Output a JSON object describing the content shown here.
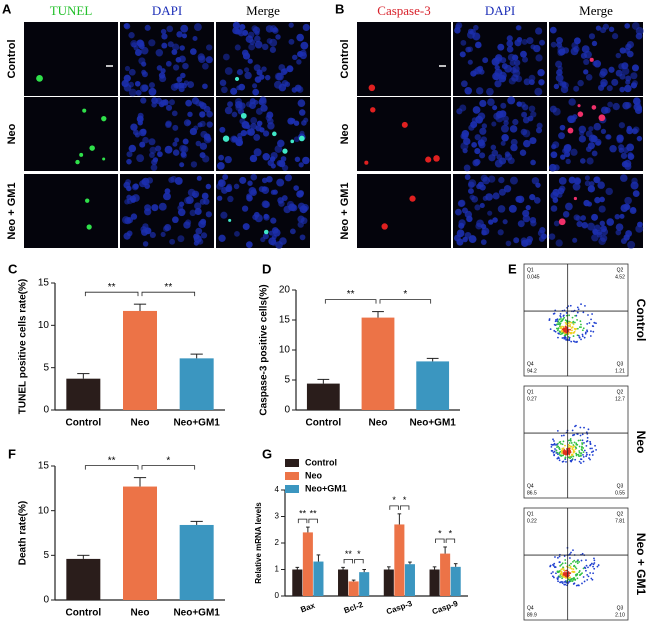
{
  "panel_a": {
    "label": "A",
    "columns": [
      "TUNEL",
      "DAPI",
      "Merge"
    ],
    "rows": [
      "Control",
      "Neo",
      "Neo + GM1"
    ]
  },
  "panel_b": {
    "label": "B",
    "columns": [
      "Caspase-3",
      "DAPI",
      "Merge"
    ],
    "rows": [
      "Control",
      "Neo",
      "Neo + GM1"
    ]
  },
  "panel_e": {
    "label": "E",
    "rows": [
      "Control",
      "Neo",
      "Neo + GM1"
    ],
    "plots": [
      {
        "quadrants": [
          {
            "name": "Q1",
            "value": "0.045"
          },
          {
            "name": "Q2",
            "value": "4.52"
          },
          {
            "name": "Q4",
            "value": "94.2"
          },
          {
            "name": "Q3",
            "value": "1.21"
          }
        ]
      },
      {
        "quadrants": [
          {
            "name": "Q1",
            "value": "0.27"
          },
          {
            "name": "Q2",
            "value": "12.7"
          },
          {
            "name": "Q4",
            "value": "86.5"
          },
          {
            "name": "Q3",
            "value": "0.55"
          }
        ]
      },
      {
        "quadrants": [
          {
            "name": "Q1",
            "value": "0.22"
          },
          {
            "name": "Q2",
            "value": "7.81"
          },
          {
            "name": "Q4",
            "value": "89.9"
          },
          {
            "name": "Q3",
            "value": "2.10"
          }
        ]
      }
    ]
  },
  "chart_data": [
    {
      "type": "bar",
      "panel_label": "C",
      "y_label": "TUNEL positive cells rate(%)",
      "categories": [
        "Control",
        "Neo",
        "Neo+GM1"
      ],
      "values": [
        3.7,
        11.7,
        6.1
      ],
      "errors": [
        0.6,
        0.8,
        0.5
      ],
      "colors": [
        "#2a1d1b",
        "#ec7347",
        "#3b96c0"
      ],
      "ylim": [
        0,
        15
      ],
      "yticks": [
        0,
        5,
        10,
        15
      ],
      "annotations": [
        "**",
        "**"
      ]
    },
    {
      "type": "bar",
      "panel_label": "D",
      "y_label": "Caspase-3 positive cells(%)",
      "categories": [
        "Control",
        "Neo",
        "Neo+GM1"
      ],
      "values": [
        4.4,
        15.4,
        8.1
      ],
      "errors": [
        0.7,
        1.0,
        0.5
      ],
      "colors": [
        "#2a1d1b",
        "#ec7347",
        "#3b96c0"
      ],
      "ylim": [
        0,
        20
      ],
      "yticks": [
        0,
        5,
        10,
        15,
        20
      ],
      "annotations": [
        "**",
        "*"
      ]
    },
    {
      "type": "bar",
      "panel_label": "F",
      "y_label": "Death rate(%)",
      "categories": [
        "Control",
        "Neo",
        "Neo+GM1"
      ],
      "values": [
        4.6,
        12.7,
        8.4
      ],
      "errors": [
        0.4,
        1.0,
        0.4
      ],
      "colors": [
        "#2a1d1b",
        "#ec7347",
        "#3b96c0"
      ],
      "ylim": [
        0,
        15
      ],
      "yticks": [
        0,
        5,
        10,
        15
      ],
      "annotations": [
        "**",
        "*"
      ]
    },
    {
      "type": "grouped_bar",
      "panel_label": "G",
      "y_label": "Relative mRNA levels",
      "categories": [
        "Bax",
        "Bcl-2",
        "Casp-3",
        "Casp-9"
      ],
      "series": [
        {
          "name": "Control",
          "color": "#2a1d1b",
          "values": [
            1,
            1,
            1,
            1
          ],
          "errors": [
            0.08,
            0.08,
            0.1,
            0.1
          ]
        },
        {
          "name": "Neo",
          "color": "#ec7347",
          "values": [
            2.4,
            0.55,
            2.7,
            1.6
          ],
          "errors": [
            0.2,
            0.05,
            0.4,
            0.25
          ]
        },
        {
          "name": "Neo+GM1",
          "color": "#3b96c0",
          "values": [
            1.3,
            0.9,
            1.2,
            1.1
          ],
          "errors": [
            0.25,
            0.1,
            0.08,
            0.12
          ]
        }
      ],
      "ylim": [
        0,
        4
      ],
      "yticks": [
        0,
        1,
        2,
        3,
        4
      ],
      "annotations": [
        "**",
        "**",
        "**",
        "*",
        "*",
        "*",
        "*",
        "*"
      ]
    }
  ]
}
